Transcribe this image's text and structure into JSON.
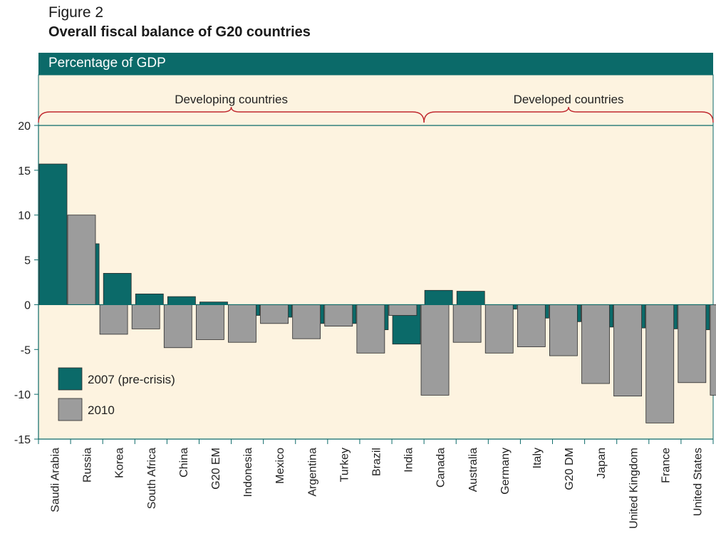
{
  "figure": {
    "label": "Figure 2",
    "title": "Overall fiscal balance of G20 countries",
    "subtitle": "Percentage of GDP"
  },
  "groups": [
    {
      "label": "Developing countries",
      "from": 0,
      "to": 11
    },
    {
      "label": "Developed countries",
      "from": 12,
      "to": 20
    }
  ],
  "colors": {
    "header": "#0b6a69",
    "plot_background": "#fdf3e0",
    "series_2007": "#0b6a69",
    "series_2010": "#9c9c9c",
    "brace": "#c0272d"
  },
  "chart_data": {
    "type": "bar",
    "title": "Overall fiscal balance of G20 countries",
    "ylabel": "Percentage of GDP",
    "ylim": [
      -15,
      20
    ],
    "yticks": [
      20,
      15,
      10,
      5,
      0,
      -5,
      -10,
      -15
    ],
    "grid": false,
    "legend_position": "bottom-left",
    "categories": [
      "Saudi Arabia",
      "Russia",
      "Korea",
      "South Africa",
      "China",
      "G20 EM",
      "Indonesia",
      "Mexico",
      "Argentina",
      "Turkey",
      "Brazil",
      "India",
      "Canada",
      "Australia",
      "Germany",
      "Italy",
      "G20 DM",
      "Japan",
      "United Kingdom",
      "France",
      "United States"
    ],
    "series": [
      {
        "name": "2007 (pre-crisis)",
        "values": [
          15.7,
          6.8,
          3.5,
          1.2,
          0.9,
          0.3,
          -1.2,
          -1.4,
          -2.1,
          -2.1,
          -2.8,
          -4.4,
          1.6,
          1.5,
          -0.5,
          -1.5,
          -1.9,
          -2.5,
          -2.6,
          -2.7,
          -2.8
        ]
      },
      {
        "name": "2010",
        "values": [
          10.0,
          -3.3,
          -2.7,
          -4.8,
          -3.9,
          -4.2,
          -2.1,
          -3.8,
          -2.4,
          -5.4,
          -1.2,
          -10.1,
          -4.2,
          -5.4,
          -4.7,
          -5.7,
          -8.8,
          -10.2,
          -13.2,
          -8.7,
          -10.1
        ]
      }
    ]
  }
}
